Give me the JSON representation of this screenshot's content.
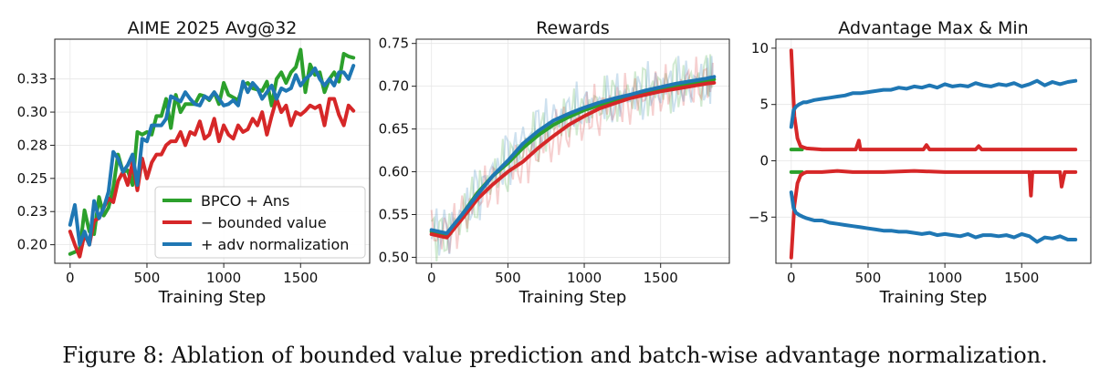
{
  "caption": "Figure 8: Ablation of bounded value prediction and batch-wise advantage normalization.",
  "colors": {
    "green": "#2ca02c",
    "red": "#d62728",
    "blue": "#1f77b4"
  },
  "legend": [
    "BPCO + Ans",
    "− bounded value",
    "+ adv normalization"
  ],
  "chart_data": [
    {
      "type": "line",
      "title": "AIME 2025 Avg@32",
      "xlabel": "Training Step",
      "ylabel": "",
      "xlim": [
        -100,
        1950
      ],
      "ylim": [
        0.186,
        0.355
      ],
      "xticks": [
        0,
        500,
        1000,
        1500
      ],
      "yticks": [
        0.2,
        0.225,
        0.25,
        0.275,
        0.3,
        0.325
      ],
      "ytick_labels": [
        "0.20",
        "0.23",
        "0.25",
        "0.28",
        "0.30",
        "0.33"
      ],
      "grid": true,
      "legend_position": "lower-right",
      "series": [
        {
          "name": "BPCO + Ans",
          "color": "#2ca02c",
          "x": [
            0,
            62,
            94,
            125,
            156,
            188,
            219,
            250,
            281,
            312,
            344,
            375,
            406,
            438,
            469,
            500,
            531,
            562,
            594,
            625,
            656,
            688,
            719,
            750,
            781,
            812,
            844,
            875,
            906,
            938,
            969,
            1000,
            1031,
            1062,
            1094,
            1125,
            1156,
            1188,
            1219,
            1250,
            1281,
            1312,
            1344,
            1375,
            1406,
            1438,
            1469,
            1500,
            1531,
            1562,
            1594,
            1625,
            1656,
            1688,
            1719,
            1750,
            1781,
            1812,
            1844
          ],
          "y": [
            0.193,
            0.196,
            0.226,
            0.21,
            0.208,
            0.236,
            0.222,
            0.228,
            0.243,
            0.268,
            0.255,
            0.256,
            0.245,
            0.285,
            0.283,
            0.285,
            0.283,
            0.297,
            0.297,
            0.31,
            0.288,
            0.313,
            0.3,
            0.306,
            0.306,
            0.306,
            0.313,
            0.312,
            0.309,
            0.315,
            0.306,
            0.322,
            0.313,
            0.311,
            0.309,
            0.32,
            0.322,
            0.318,
            0.317,
            0.316,
            0.323,
            0.305,
            0.325,
            0.33,
            0.322,
            0.33,
            0.334,
            0.347,
            0.315,
            0.336,
            0.328,
            0.33,
            0.315,
            0.325,
            0.33,
            0.323,
            0.344,
            0.342,
            0.341
          ]
        },
        {
          "name": "− bounded value",
          "color": "#d62728",
          "x": [
            0,
            31,
            62,
            94,
            125,
            156,
            188,
            219,
            250,
            281,
            312,
            344,
            375,
            406,
            438,
            469,
            500,
            531,
            562,
            594,
            625,
            656,
            688,
            719,
            750,
            781,
            812,
            844,
            875,
            906,
            938,
            969,
            1000,
            1031,
            1062,
            1094,
            1125,
            1156,
            1188,
            1219,
            1250,
            1281,
            1312,
            1344,
            1375,
            1406,
            1438,
            1469,
            1500,
            1531,
            1562,
            1594,
            1625,
            1656,
            1688,
            1719,
            1750,
            1781,
            1812,
            1844
          ],
          "y": [
            0.21,
            0.2,
            0.191,
            0.208,
            0.2,
            0.218,
            0.22,
            0.228,
            0.235,
            0.232,
            0.248,
            0.255,
            0.245,
            0.262,
            0.241,
            0.265,
            0.25,
            0.262,
            0.268,
            0.268,
            0.275,
            0.278,
            0.278,
            0.285,
            0.275,
            0.285,
            0.283,
            0.293,
            0.28,
            0.283,
            0.295,
            0.278,
            0.29,
            0.283,
            0.28,
            0.29,
            0.285,
            0.287,
            0.295,
            0.29,
            0.3,
            0.283,
            0.297,
            0.31,
            0.3,
            0.305,
            0.29,
            0.3,
            0.298,
            0.301,
            0.305,
            0.303,
            0.305,
            0.29,
            0.31,
            0.31,
            0.298,
            0.29,
            0.305,
            0.301
          ]
        },
        {
          "name": "+ adv normalization",
          "color": "#1f77b4",
          "x": [
            0,
            31,
            62,
            94,
            125,
            156,
            188,
            219,
            250,
            281,
            312,
            344,
            375,
            406,
            438,
            469,
            500,
            531,
            562,
            594,
            625,
            656,
            688,
            719,
            750,
            781,
            812,
            844,
            875,
            906,
            938,
            969,
            1000,
            1031,
            1062,
            1094,
            1125,
            1156,
            1188,
            1219,
            1250,
            1281,
            1312,
            1344,
            1375,
            1406,
            1438,
            1469,
            1500,
            1531,
            1562,
            1594,
            1625,
            1656,
            1688,
            1719,
            1750,
            1781,
            1812,
            1844
          ],
          "y": [
            0.215,
            0.23,
            0.2,
            0.21,
            0.2,
            0.233,
            0.22,
            0.228,
            0.24,
            0.27,
            0.265,
            0.255,
            0.26,
            0.268,
            0.245,
            0.28,
            0.278,
            0.29,
            0.29,
            0.29,
            0.295,
            0.312,
            0.31,
            0.308,
            0.315,
            0.31,
            0.306,
            0.305,
            0.312,
            0.31,
            0.315,
            0.31,
            0.305,
            0.306,
            0.309,
            0.305,
            0.323,
            0.315,
            0.322,
            0.318,
            0.31,
            0.315,
            0.32,
            0.31,
            0.318,
            0.316,
            0.318,
            0.328,
            0.32,
            0.325,
            0.328,
            0.333,
            0.325,
            0.32,
            0.325,
            0.32,
            0.33,
            0.33,
            0.325,
            0.335
          ]
        }
      ]
    },
    {
      "type": "line",
      "title": "Rewards",
      "xlabel": "Training Step",
      "ylabel": "",
      "xlim": [
        -100,
        1950
      ],
      "ylim": [
        0.493,
        0.755
      ],
      "xticks": [
        0,
        500,
        1000,
        1500
      ],
      "yticks": [
        0.5,
        0.55,
        0.6,
        0.65,
        0.7,
        0.75
      ],
      "ytick_labels": [
        "0.50",
        "0.55",
        "0.60",
        "0.65",
        "0.70",
        "0.75"
      ],
      "grid": true,
      "series": [
        {
          "name": "BPCO + Ans",
          "color": "#2ca02c",
          "x": [
            0,
            100,
            200,
            300,
            400,
            500,
            600,
            700,
            800,
            900,
            1000,
            1100,
            1200,
            1300,
            1400,
            1500,
            1600,
            1700,
            1800,
            1850
          ],
          "y": [
            0.53,
            0.527,
            0.55,
            0.575,
            0.595,
            0.61,
            0.628,
            0.643,
            0.655,
            0.664,
            0.672,
            0.678,
            0.683,
            0.688,
            0.693,
            0.697,
            0.7,
            0.703,
            0.707,
            0.708
          ]
        },
        {
          "name": "− bounded value",
          "color": "#d62728",
          "x": [
            0,
            100,
            200,
            300,
            400,
            500,
            600,
            700,
            800,
            900,
            1000,
            1100,
            1200,
            1300,
            1400,
            1500,
            1600,
            1700,
            1800,
            1850
          ],
          "y": [
            0.527,
            0.523,
            0.545,
            0.568,
            0.585,
            0.6,
            0.612,
            0.628,
            0.642,
            0.655,
            0.665,
            0.674,
            0.68,
            0.686,
            0.69,
            0.694,
            0.697,
            0.7,
            0.703,
            0.704
          ]
        },
        {
          "name": "+ adv normalization",
          "color": "#1f77b4",
          "x": [
            0,
            100,
            200,
            300,
            400,
            500,
            600,
            700,
            800,
            900,
            1000,
            1100,
            1200,
            1300,
            1400,
            1500,
            1600,
            1700,
            1800,
            1850
          ],
          "y": [
            0.532,
            0.528,
            0.55,
            0.573,
            0.595,
            0.613,
            0.633,
            0.648,
            0.66,
            0.668,
            0.675,
            0.681,
            0.686,
            0.69,
            0.695,
            0.699,
            0.703,
            0.706,
            0.709,
            0.711
          ]
        }
      ]
    },
    {
      "type": "line",
      "title": "Advantage Max & Min",
      "xlabel": "Training Step",
      "ylabel": "",
      "xlim": [
        -100,
        1950
      ],
      "ylim": [
        -9.1,
        10.8
      ],
      "xticks": [
        0,
        500,
        1000,
        1500
      ],
      "yticks": [
        -5,
        0,
        5,
        10
      ],
      "ytick_labels": [
        "−5",
        "0",
        "5",
        "10"
      ],
      "grid": true,
      "series": [
        {
          "name": "BPCO + Ans (max)",
          "color": "#2ca02c",
          "x": [
            0,
            70
          ],
          "y": [
            1.0,
            1.0
          ]
        },
        {
          "name": "BPCO + Ans (min)",
          "color": "#2ca02c",
          "x": [
            0,
            70
          ],
          "y": [
            -1.0,
            -1.0
          ]
        },
        {
          "name": "− bounded value (max)",
          "color": "#d62728",
          "x": [
            0,
            20,
            40,
            60,
            80,
            100,
            200,
            300,
            400,
            420,
            440,
            450,
            460,
            480,
            600,
            700,
            860,
            880,
            900,
            1000,
            1200,
            1220,
            1240,
            1400,
            1600,
            1800,
            1850
          ],
          "y": [
            9.8,
            4.0,
            2.0,
            1.3,
            1.2,
            1.1,
            1.0,
            1.0,
            1.0,
            1.0,
            1.8,
            1.0,
            1.0,
            1.0,
            1.0,
            1.0,
            1.0,
            1.4,
            1.0,
            1.0,
            1.0,
            1.3,
            1.0,
            1.0,
            1.0,
            1.0,
            1.0
          ]
        },
        {
          "name": "− bounded value (min)",
          "color": "#d62728",
          "x": [
            0,
            20,
            40,
            60,
            80,
            100,
            200,
            300,
            400,
            600,
            800,
            1000,
            1200,
            1400,
            1500,
            1550,
            1560,
            1570,
            1600,
            1700,
            1750,
            1760,
            1780,
            1800,
            1850
          ],
          "y": [
            -8.6,
            -4.0,
            -2.0,
            -1.3,
            -1.1,
            -1.0,
            -1.0,
            -0.9,
            -1.0,
            -1.0,
            -0.9,
            -1.0,
            -1.0,
            -1.0,
            -1.0,
            -1.0,
            -3.1,
            -1.0,
            -1.0,
            -1.0,
            -1.0,
            -2.3,
            -1.0,
            -1.0,
            -1.0
          ]
        },
        {
          "name": "+ adv normalization (max)",
          "color": "#1f77b4",
          "x": [
            0,
            15,
            30,
            50,
            80,
            100,
            150,
            200,
            250,
            300,
            350,
            400,
            450,
            500,
            550,
            600,
            650,
            700,
            750,
            800,
            850,
            900,
            950,
            1000,
            1050,
            1100,
            1150,
            1200,
            1250,
            1300,
            1350,
            1400,
            1450,
            1500,
            1550,
            1600,
            1650,
            1700,
            1750,
            1800,
            1850
          ],
          "y": [
            3.0,
            4.5,
            4.8,
            5.0,
            5.2,
            5.2,
            5.4,
            5.5,
            5.6,
            5.7,
            5.8,
            6.0,
            6.0,
            6.1,
            6.2,
            6.3,
            6.3,
            6.5,
            6.4,
            6.6,
            6.5,
            6.7,
            6.5,
            6.8,
            6.6,
            6.7,
            6.6,
            6.9,
            6.7,
            6.6,
            6.8,
            6.7,
            6.9,
            6.6,
            6.8,
            7.1,
            6.7,
            7.0,
            6.8,
            7.0,
            7.1
          ]
        },
        {
          "name": "+ adv normalization (min)",
          "color": "#1f77b4",
          "x": [
            0,
            15,
            30,
            50,
            80,
            100,
            150,
            200,
            250,
            300,
            350,
            400,
            450,
            500,
            550,
            600,
            650,
            700,
            750,
            800,
            850,
            900,
            950,
            1000,
            1050,
            1100,
            1150,
            1200,
            1250,
            1300,
            1350,
            1400,
            1450,
            1500,
            1550,
            1600,
            1650,
            1700,
            1750,
            1800,
            1850
          ],
          "y": [
            -2.8,
            -4.2,
            -4.6,
            -4.8,
            -5.0,
            -5.1,
            -5.3,
            -5.3,
            -5.5,
            -5.6,
            -5.7,
            -5.8,
            -5.9,
            -6.0,
            -6.1,
            -6.2,
            -6.2,
            -6.3,
            -6.3,
            -6.4,
            -6.5,
            -6.4,
            -6.6,
            -6.5,
            -6.6,
            -6.7,
            -6.5,
            -6.8,
            -6.6,
            -6.6,
            -6.7,
            -6.6,
            -6.8,
            -6.5,
            -6.7,
            -7.2,
            -6.8,
            -6.9,
            -6.7,
            -7.0,
            -7.0
          ]
        }
      ]
    }
  ]
}
